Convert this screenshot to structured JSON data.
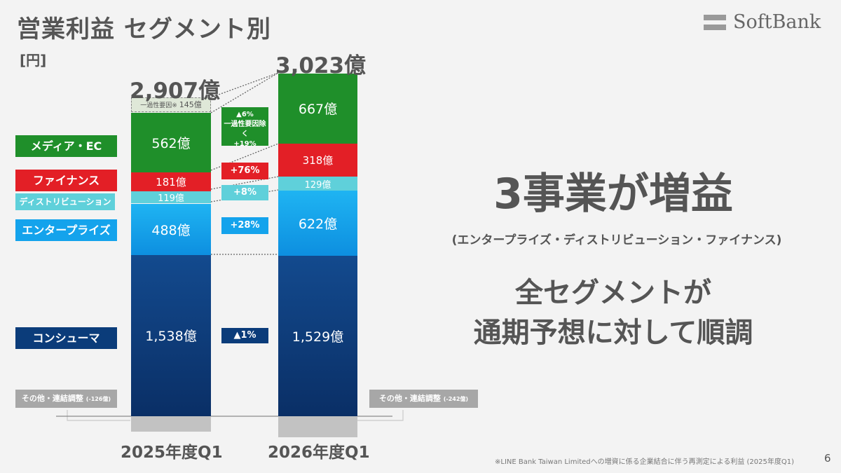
{
  "header": {
    "title": "営業利益 セグメント別",
    "unit": "[円]",
    "logo_text": "SoftBank"
  },
  "chart_data": {
    "type": "bar",
    "stacked": true,
    "categories": [
      "2025年度Q1",
      "2026年度Q1"
    ],
    "series": [
      {
        "name": "コンシューマ",
        "values": [
          1538,
          1529
        ],
        "value_labels": [
          "1,538億",
          "1,529億"
        ],
        "color": "#0b3c7a",
        "change": "▲1%"
      },
      {
        "name": "エンタープライズ",
        "values": [
          488,
          622
        ],
        "value_labels": [
          "488億",
          "622億"
        ],
        "color": "#14a3ec",
        "change": "+28%"
      },
      {
        "name": "ディストリビューション",
        "values": [
          119,
          129
        ],
        "value_labels": [
          "119億",
          "129億"
        ],
        "color": "#5fd0da",
        "change": "+8%"
      },
      {
        "name": "ファイナンス",
        "values": [
          181,
          318
        ],
        "value_labels": [
          "181億",
          "318億"
        ],
        "color": "#e31f26",
        "change": "+76%"
      },
      {
        "name": "メディア・EC",
        "values": [
          562,
          667
        ],
        "value_labels": [
          "562億",
          "667億"
        ],
        "color": "#1f8f2a",
        "change": "▲6%\n一過性要因除く\n+19%"
      }
    ],
    "one_time": {
      "label": "一過性要因",
      "footnote_mark": "※",
      "value_label": "145億",
      "value": 145,
      "category": "2025年度Q1"
    },
    "other_adjustments": [
      {
        "label": "その他・連結調整",
        "value_label": "(-126億)",
        "value": -126
      },
      {
        "label": "その他・連結調整",
        "value_label": "(-242億)",
        "value": -242
      }
    ],
    "totals": [
      {
        "label": "2,907億",
        "value": 2907
      },
      {
        "label": "3,023億",
        "value": 3023
      }
    ],
    "colors": {
      "gray": "#a7a7a7",
      "text": "#555555"
    }
  },
  "messages": {
    "headline": "3事業が増益",
    "headline_sub": "(エンタープライズ・ディストリビューション・ファイナンス)",
    "line2": "全セグメントが",
    "line3": "通期予想に対して順調"
  },
  "footnote": "※LINE Bank Taiwan Limitedへの増資に係る企業結合に伴う再測定による利益 (2025年度Q1)",
  "page_number": "6"
}
